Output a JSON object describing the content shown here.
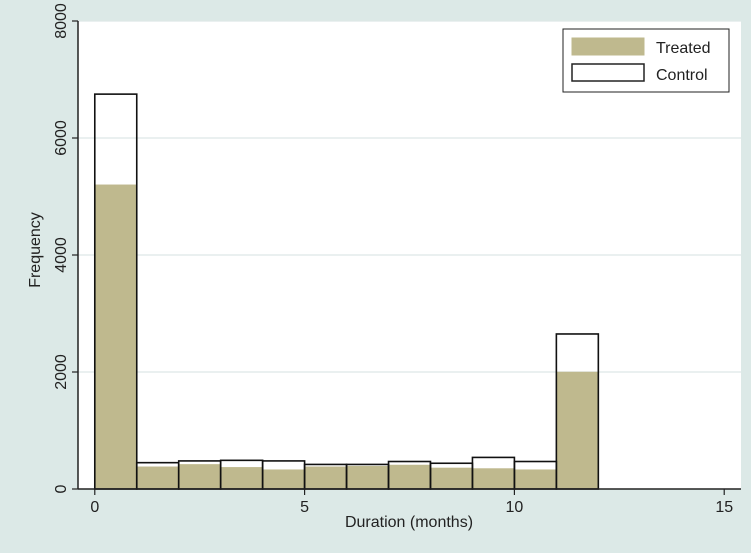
{
  "chart_data": {
    "type": "bar",
    "xlabel": "Duration (months)",
    "ylabel": "Frequency",
    "xlim": [
      -0.4,
      15.4
    ],
    "ylim": [
      0,
      8000
    ],
    "x_ticks": [
      "0",
      "5",
      "10",
      "15"
    ],
    "y_ticks": [
      "0",
      "2000",
      "4000",
      "6000",
      "8000"
    ],
    "grid": true,
    "legend_position": "top-right",
    "bin_edges": [
      0,
      1,
      2,
      3,
      4,
      5,
      6,
      7,
      8,
      9,
      10,
      11,
      12
    ],
    "series": [
      {
        "name": "Treated",
        "color": "#bfb98e",
        "values": [
          5200,
          380,
          420,
          370,
          330,
          380,
          390,
          410,
          360,
          350,
          330,
          2000
        ]
      },
      {
        "name": "Control",
        "color": "#ffffff",
        "values": [
          6750,
          450,
          480,
          490,
          480,
          420,
          420,
          470,
          440,
          540,
          470,
          2650
        ]
      }
    ]
  }
}
